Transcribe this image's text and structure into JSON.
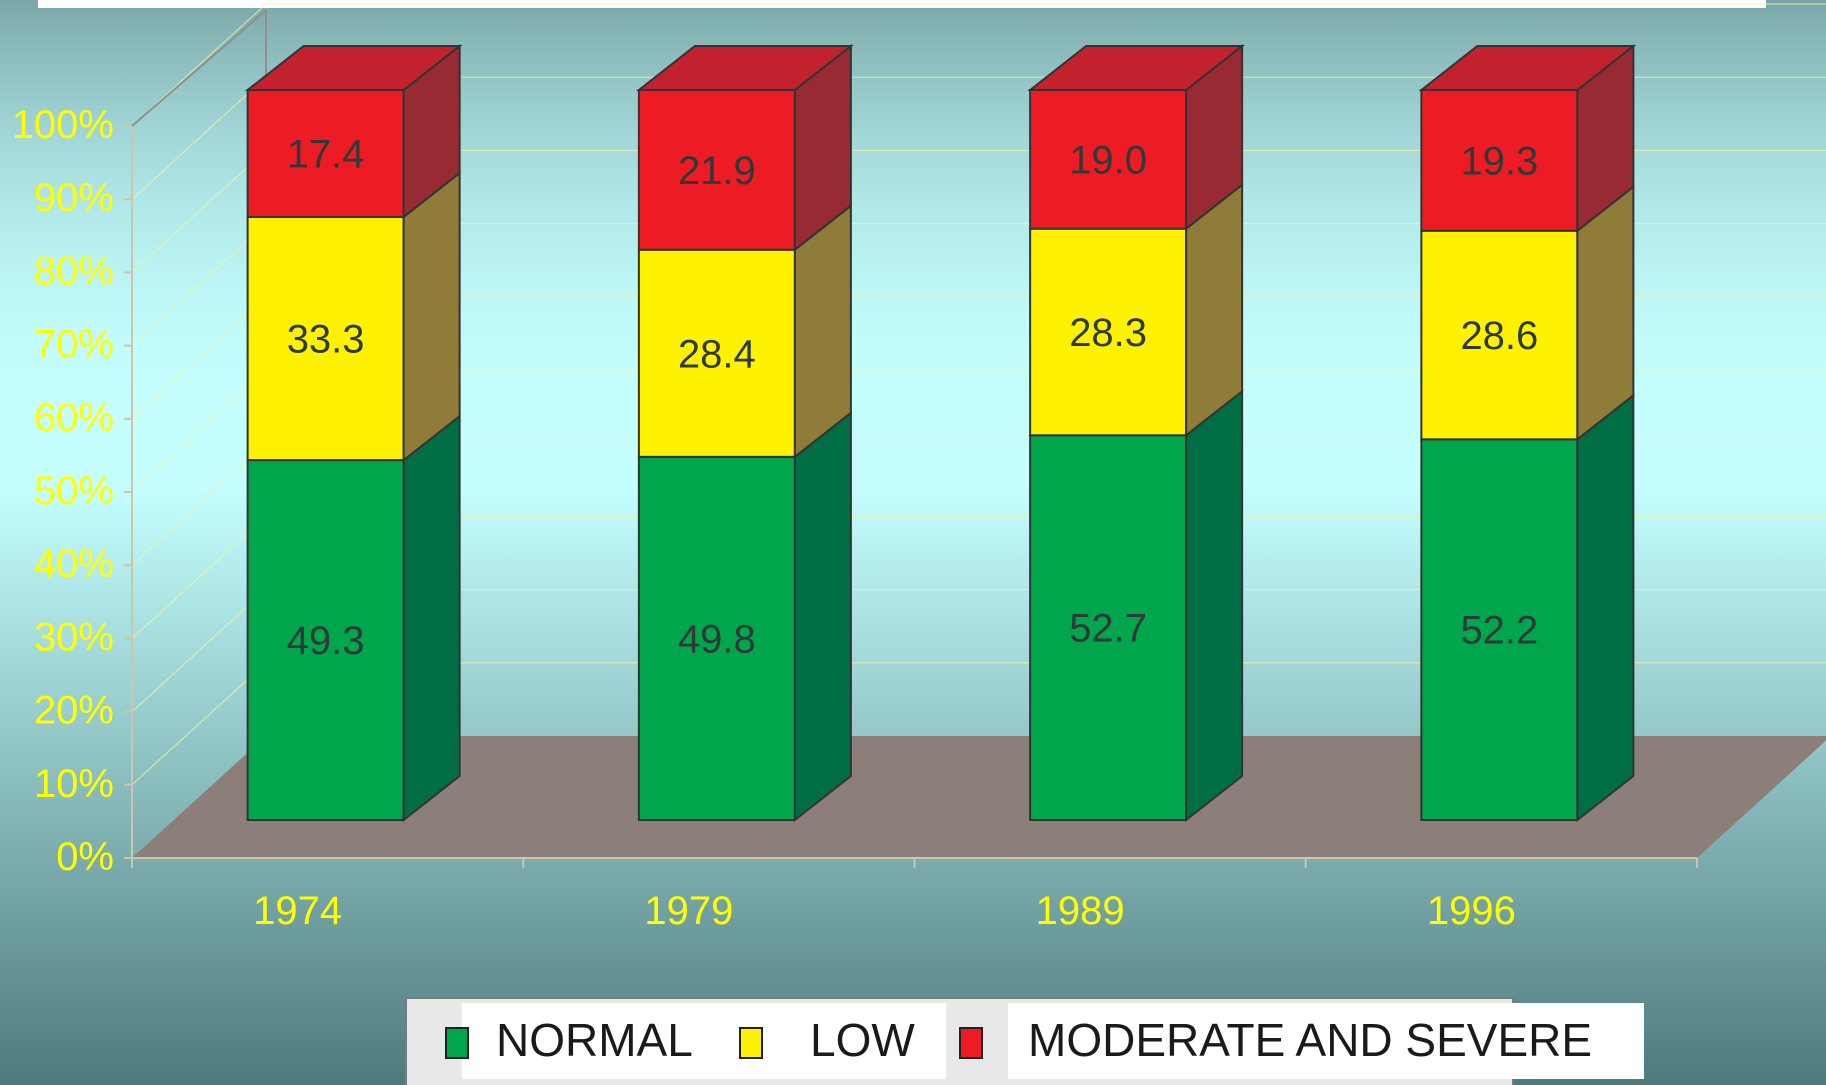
{
  "colors": {
    "background_top": "#c4fefe",
    "background_bottom": "#4f7a7c",
    "axis_label": "#ffff00",
    "floor": "#8c7f79",
    "wall_line": "#c9c8ae",
    "gridline": "#f4f4a0",
    "data_label": "#2e3a3a"
  },
  "chart_data": {
    "type": "bar",
    "stacked": true,
    "three_d": true,
    "percent_scale": true,
    "categories": [
      "1974",
      "1979",
      "1989",
      "1996"
    ],
    "series": [
      {
        "name": "NORMAL",
        "values": [
          49.3,
          49.8,
          52.7,
          52.2
        ],
        "labels": [
          "49.3",
          "49.8",
          "52.7",
          "52.2"
        ],
        "color": "#00a64c",
        "side_color": "#006e45",
        "top_color": "#00a64c"
      },
      {
        "name": "LOW",
        "values": [
          33.3,
          28.4,
          28.3,
          28.6
        ],
        "labels": [
          "33.3",
          "28.4",
          "28.3",
          "28.6"
        ],
        "color": "#fff200",
        "side_color": "#8e7c38",
        "top_color": "#fff200"
      },
      {
        "name": "MODERATE AND SEVERE",
        "values": [
          17.4,
          21.9,
          19.0,
          19.3
        ],
        "labels": [
          "17.4",
          "21.9",
          "19.0",
          "19.3"
        ],
        "color": "#ed1c24",
        "side_color": "#982a33",
        "top_color": "#c1222d"
      }
    ],
    "ylim": [
      0,
      100
    ],
    "yticks": [
      "0%",
      "10%",
      "20%",
      "30%",
      "40%",
      "50%",
      "60%",
      "70%",
      "80%",
      "90%",
      "100%"
    ],
    "grid": true,
    "legend_position": "bottom"
  }
}
